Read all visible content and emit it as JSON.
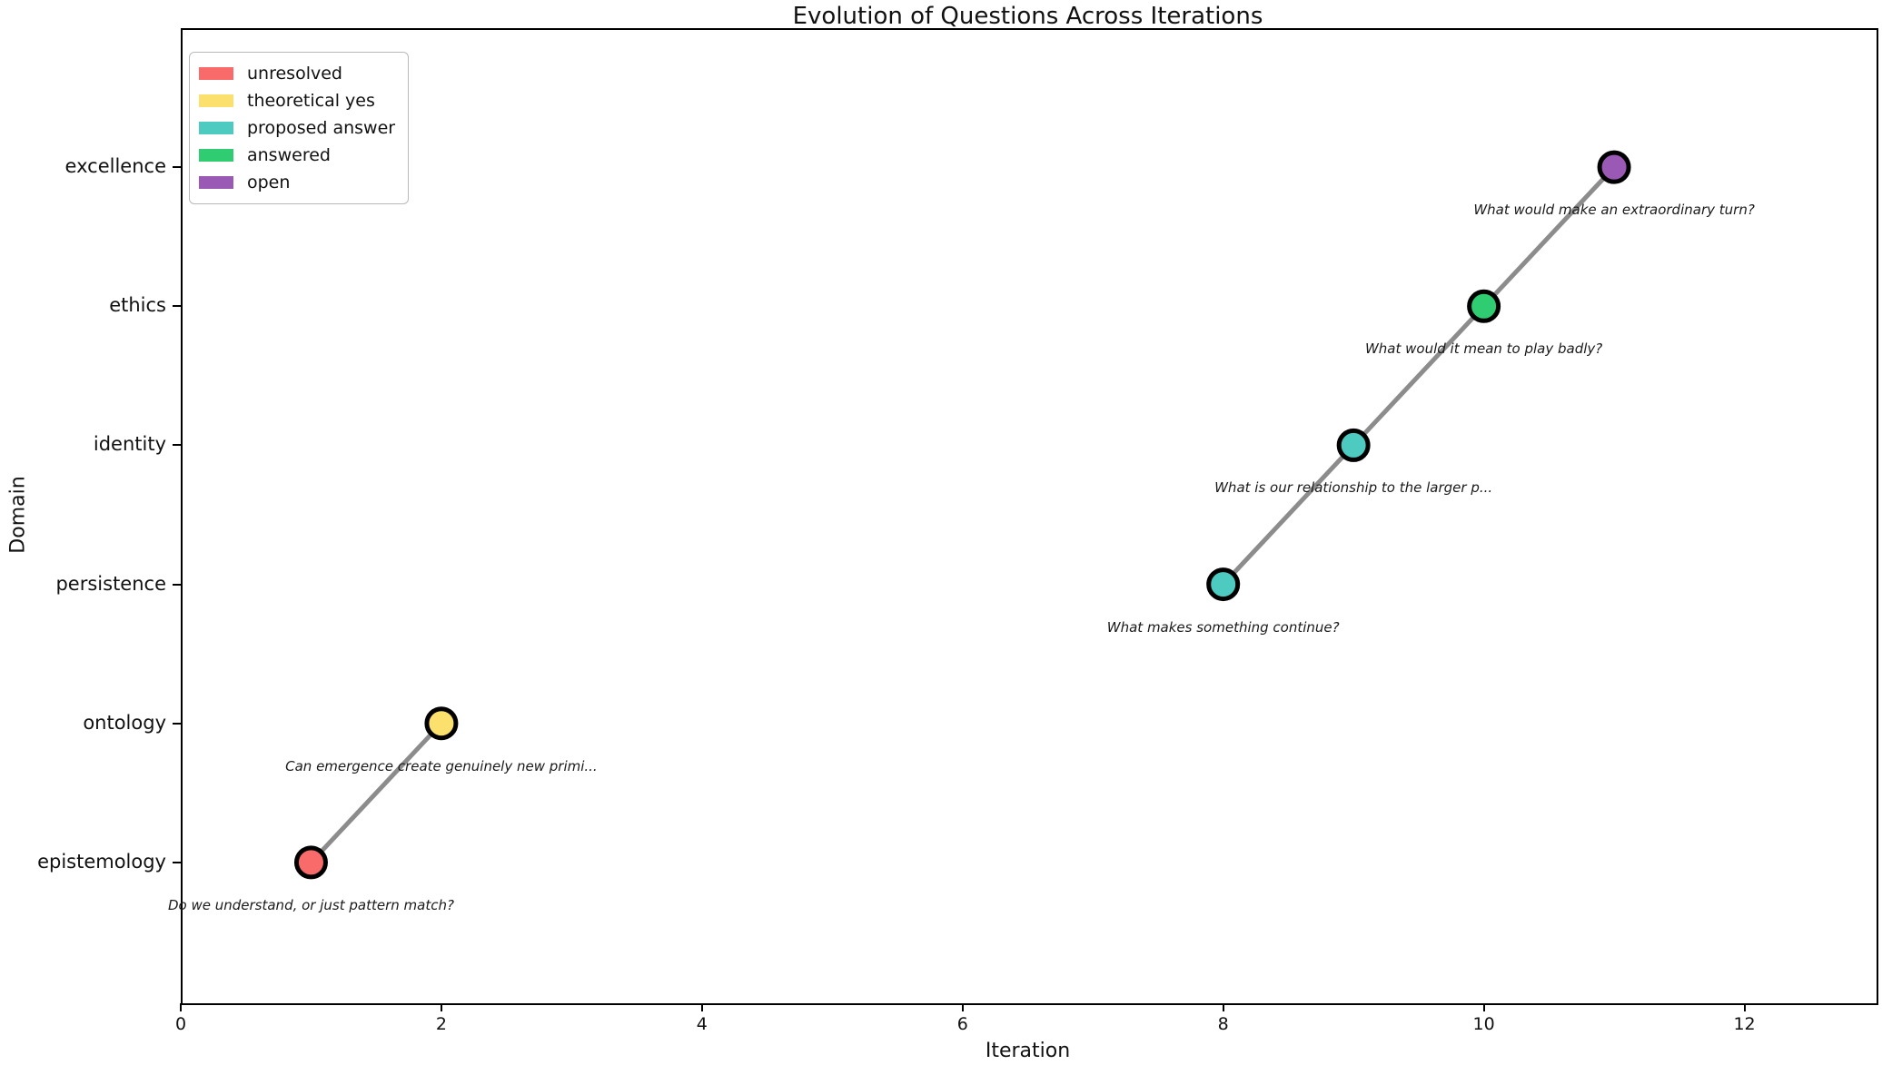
{
  "chart_data": {
    "type": "scatter",
    "title": "Evolution of Questions Across Iterations",
    "xlabel": "Iteration",
    "ylabel": "Domain",
    "xlim": [
      0,
      13
    ],
    "ylim": [
      -1,
      6
    ],
    "xticks": [
      0,
      2,
      4,
      6,
      8,
      10,
      12
    ],
    "domains": [
      "epistemology",
      "ontology",
      "persistence",
      "identity",
      "ethics",
      "excellence"
    ],
    "grid": false,
    "legend_position": "upper left",
    "legend_entries": [
      {
        "label": "unresolved",
        "color": "#F96B6B"
      },
      {
        "label": "theoretical yes",
        "color": "#FBE06E"
      },
      {
        "label": "proposed answer",
        "color": "#4DCBC1"
      },
      {
        "label": "answered",
        "color": "#2FCC71"
      },
      {
        "label": "open",
        "color": "#9B59B6"
      }
    ],
    "status_colors": {
      "unresolved": "#F96B6B",
      "theoretical yes": "#FBE06E",
      "proposed answer": "#4DCBC1",
      "answered": "#2FCC71",
      "open": "#9B59B6"
    },
    "line_color": "#8C8C8C",
    "marker_edge_color": "#000000",
    "points": [
      {
        "iteration": 1,
        "domain": "epistemology",
        "status": "unresolved",
        "question": "Do we understand, or just pattern match?",
        "thread": 0
      },
      {
        "iteration": 2,
        "domain": "ontology",
        "status": "theoretical yes",
        "question": "Can emergence create genuinely new primi...",
        "thread": 0
      },
      {
        "iteration": 8,
        "domain": "persistence",
        "status": "proposed answer",
        "question": "What makes something continue?",
        "thread": 1
      },
      {
        "iteration": 9,
        "domain": "identity",
        "status": "proposed answer",
        "question": "What is our relationship to the larger p...",
        "thread": 1
      },
      {
        "iteration": 10,
        "domain": "ethics",
        "status": "answered",
        "question": "What would it mean to play badly?",
        "thread": 1
      },
      {
        "iteration": 11,
        "domain": "excellence",
        "status": "open",
        "question": "What would make an extraordinary turn?",
        "thread": 1
      }
    ]
  }
}
